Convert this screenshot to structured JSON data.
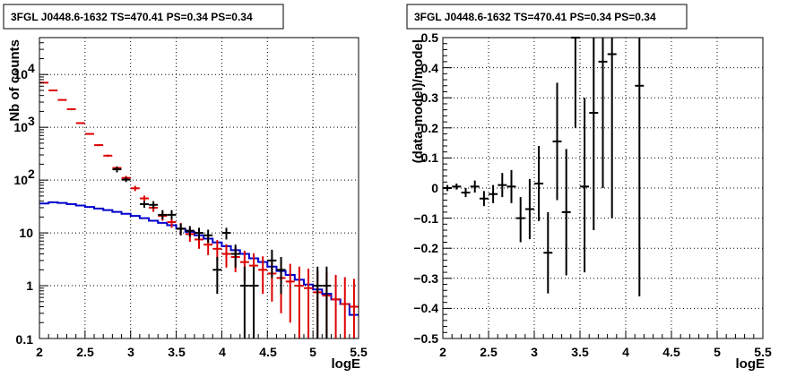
{
  "chart_data": [
    {
      "type": "scatter",
      "title": "3FGL J0448.6-1632 TS=470.41 PS=0.34 PS=0.34",
      "xlabel": "logE",
      "ylabel": "Nb of counts",
      "xlim": [
        2,
        5.5
      ],
      "ylim": [
        0.1,
        50000
      ],
      "log_y": true,
      "grid": true,
      "x_ticks": [
        "2",
        "2.5",
        "3",
        "3.5",
        "4",
        "4.5",
        "5",
        "5.5"
      ],
      "y_ticks": [
        "0.1",
        "1",
        "10",
        "10",
        "10",
        "10"
      ],
      "y_tick_exponents": [
        "",
        "",
        "",
        "2",
        "3",
        "4"
      ],
      "colors": {
        "data": "#000000",
        "model_points": "#dd0000",
        "model_line": "#0000cc"
      },
      "series": [
        {
          "kind": "data_errorbars",
          "points": [
            {
              "x": 2.85,
              "y": 160,
              "lo": 140,
              "hi": 180
            },
            {
              "x": 2.95,
              "y": 102,
              "lo": 92,
              "hi": 112
            },
            {
              "x": 3.15,
              "y": 35,
              "lo": 30,
              "hi": 40
            },
            {
              "x": 3.25,
              "y": 34,
              "lo": 29,
              "hi": 40
            },
            {
              "x": 3.35,
              "y": 22,
              "lo": 18,
              "hi": 27
            },
            {
              "x": 3.45,
              "y": 22,
              "lo": 18,
              "hi": 27
            },
            {
              "x": 3.55,
              "y": 12,
              "lo": 9,
              "hi": 15
            },
            {
              "x": 3.65,
              "y": 11,
              "lo": 8.5,
              "hi": 13.5
            },
            {
              "x": 3.75,
              "y": 10,
              "lo": 7.5,
              "hi": 12.5
            },
            {
              "x": 3.85,
              "y": 9,
              "lo": 6.5,
              "hi": 11.5
            },
            {
              "x": 3.95,
              "y": 2,
              "lo": 0.7,
              "hi": 3.5
            },
            {
              "x": 4.05,
              "y": 10,
              "lo": 7.5,
              "hi": 12.5
            },
            {
              "x": 4.15,
              "y": 4,
              "lo": 2.2,
              "hi": 6
            },
            {
              "x": 4.25,
              "y": 1,
              "lo": 0.1,
              "hi": 2.3
            },
            {
              "x": 4.35,
              "y": 1,
              "lo": 0.1,
              "hi": 2.3
            },
            {
              "x": 4.55,
              "y": 3,
              "lo": 1.4,
              "hi": 4.8
            },
            {
              "x": 4.65,
              "y": 2,
              "lo": 0.7,
              "hi": 3.5
            },
            {
              "x": 5.05,
              "y": 1,
              "lo": 0.1,
              "hi": 2.3
            },
            {
              "x": 5.15,
              "y": 1,
              "lo": 0.1,
              "hi": 2.3
            }
          ]
        },
        {
          "kind": "model_errorbars",
          "points": [
            {
              "x": 2.05,
              "y": 7000,
              "lo": 6850,
              "hi": 7150
            },
            {
              "x": 2.15,
              "y": 5000,
              "lo": 4900,
              "hi": 5100
            },
            {
              "x": 2.25,
              "y": 3300,
              "lo": 3220,
              "hi": 3380
            },
            {
              "x": 2.35,
              "y": 2200,
              "lo": 2140,
              "hi": 2260
            },
            {
              "x": 2.45,
              "y": 1200,
              "lo": 1160,
              "hi": 1240
            },
            {
              "x": 2.55,
              "y": 750,
              "lo": 720,
              "hi": 780
            },
            {
              "x": 2.65,
              "y": 460,
              "lo": 440,
              "hi": 480
            },
            {
              "x": 2.75,
              "y": 290,
              "lo": 275,
              "hi": 305
            },
            {
              "x": 2.85,
              "y": 170,
              "lo": 158,
              "hi": 182
            },
            {
              "x": 2.95,
              "y": 110,
              "lo": 100,
              "hi": 120
            },
            {
              "x": 3.05,
              "y": 70,
              "lo": 62,
              "hi": 78
            },
            {
              "x": 3.15,
              "y": 45,
              "lo": 39,
              "hi": 51
            },
            {
              "x": 3.25,
              "y": 30,
              "lo": 25,
              "hi": 35
            },
            {
              "x": 3.35,
              "y": 21,
              "lo": 17,
              "hi": 25
            },
            {
              "x": 3.45,
              "y": 16,
              "lo": 12.5,
              "hi": 20
            },
            {
              "x": 3.55,
              "y": 12,
              "lo": 9,
              "hi": 15.5
            },
            {
              "x": 3.65,
              "y": 9.5,
              "lo": 6.8,
              "hi": 12.5
            },
            {
              "x": 3.75,
              "y": 7.5,
              "lo": 5,
              "hi": 10.2
            },
            {
              "x": 3.85,
              "y": 6,
              "lo": 3.8,
              "hi": 8.5
            },
            {
              "x": 3.95,
              "y": 5,
              "lo": 3,
              "hi": 7.3
            },
            {
              "x": 4.05,
              "y": 4,
              "lo": 2.2,
              "hi": 6.1
            },
            {
              "x": 4.15,
              "y": 3.5,
              "lo": 1.8,
              "hi": 5.4
            },
            {
              "x": 4.25,
              "y": 2.8,
              "lo": 1.2,
              "hi": 4.6
            },
            {
              "x": 4.35,
              "y": 2.4,
              "lo": 0.9,
              "hi": 4.1
            },
            {
              "x": 4.45,
              "y": 2,
              "lo": 0.7,
              "hi": 3.6
            },
            {
              "x": 4.55,
              "y": 1.7,
              "lo": 0.5,
              "hi": 3.2
            },
            {
              "x": 4.65,
              "y": 1.4,
              "lo": 0.3,
              "hi": 2.8
            },
            {
              "x": 4.75,
              "y": 1.2,
              "lo": 0.2,
              "hi": 2.6
            },
            {
              "x": 4.85,
              "y": 1,
              "lo": 0.1,
              "hi": 2.3
            },
            {
              "x": 4.95,
              "y": 0.9,
              "lo": 0.1,
              "hi": 2.1
            },
            {
              "x": 5.05,
              "y": 0.75,
              "lo": 0.1,
              "hi": 1.9
            },
            {
              "x": 5.15,
              "y": 0.65,
              "lo": 0.1,
              "hi": 1.8
            },
            {
              "x": 5.25,
              "y": 0.55,
              "lo": 0.1,
              "hi": 1.6
            },
            {
              "x": 5.35,
              "y": 0.45,
              "lo": 0.1,
              "hi": 1.45
            },
            {
              "x": 5.45,
              "y": 0.4,
              "lo": 0.1,
              "hi": 1.35
            }
          ]
        },
        {
          "kind": "step_line",
          "edges": [
            2.0,
            2.1,
            2.2,
            2.3,
            2.4,
            2.5,
            2.6,
            2.7,
            2.8,
            2.9,
            3.0,
            3.1,
            3.2,
            3.3,
            3.4,
            3.5,
            3.6,
            3.7,
            3.8,
            3.9,
            4.0,
            4.1,
            4.2,
            4.3,
            4.4,
            4.5,
            4.6,
            4.7,
            4.8,
            4.9,
            5.0,
            5.1,
            5.2,
            5.3,
            5.4,
            5.5
          ],
          "values": [
            36,
            38,
            37,
            35,
            33,
            31,
            29,
            27,
            25,
            23,
            21,
            19,
            17,
            15.5,
            14,
            12,
            10.5,
            9,
            7.8,
            6.6,
            5.6,
            4.7,
            4,
            3.3,
            2.8,
            2.3,
            1.9,
            1.6,
            1.3,
            1.05,
            0.85,
            0.7,
            0.55,
            0.45,
            0.28
          ]
        }
      ]
    },
    {
      "type": "scatter",
      "title": "3FGL J0448.6-1632 TS=470.41 PS=0.34 PS=0.34",
      "xlabel": "logE",
      "ylabel": "(data-model)/model",
      "xlim": [
        2,
        5.5
      ],
      "ylim": [
        -0.5,
        0.5
      ],
      "grid": true,
      "x_ticks": [
        "2",
        "2.5",
        "3",
        "3.5",
        "4",
        "4.5",
        "5",
        "5.5"
      ],
      "y_ticks": [
        "−0.5",
        "−0.4",
        "−0.3",
        "−0.2",
        "−0.1",
        "0",
        "0.1",
        "0.2",
        "0.3",
        "0.4",
        "0.5"
      ],
      "colors": {
        "data": "#000000"
      },
      "series": [
        {
          "kind": "residuals",
          "points": [
            {
              "x": 2.05,
              "y": 0.0,
              "lo": -0.01,
              "hi": 0.01
            },
            {
              "x": 2.15,
              "y": 0.005,
              "lo": -0.005,
              "hi": 0.015
            },
            {
              "x": 2.25,
              "y": -0.015,
              "lo": -0.03,
              "hi": 0.0
            },
            {
              "x": 2.35,
              "y": 0.005,
              "lo": -0.015,
              "hi": 0.025
            },
            {
              "x": 2.45,
              "y": -0.035,
              "lo": -0.06,
              "hi": -0.01
            },
            {
              "x": 2.55,
              "y": -0.02,
              "lo": -0.05,
              "hi": 0.01
            },
            {
              "x": 2.65,
              "y": 0.01,
              "lo": -0.03,
              "hi": 0.05
            },
            {
              "x": 2.75,
              "y": 0.005,
              "lo": -0.05,
              "hi": 0.06
            },
            {
              "x": 2.85,
              "y": -0.1,
              "lo": -0.18,
              "hi": -0.03
            },
            {
              "x": 2.95,
              "y": -0.07,
              "lo": -0.17,
              "hi": 0.03
            },
            {
              "x": 3.05,
              "y": 0.015,
              "lo": -0.11,
              "hi": 0.14
            },
            {
              "x": 3.15,
              "y": -0.215,
              "lo": -0.35,
              "hi": -0.08
            },
            {
              "x": 3.25,
              "y": 0.155,
              "lo": -0.04,
              "hi": 0.35
            },
            {
              "x": 3.35,
              "y": -0.08,
              "lo": -0.29,
              "hi": 0.13
            },
            {
              "x": 3.45,
              "y": 0.5,
              "lo": 0.2,
              "hi": 0.5
            },
            {
              "x": 3.55,
              "y": 0.005,
              "lo": -0.28,
              "hi": 0.3
            },
            {
              "x": 3.65,
              "y": 0.25,
              "lo": -0.14,
              "hi": 0.5
            },
            {
              "x": 3.75,
              "y": 0.42,
              "lo": 0.0,
              "hi": 0.5
            },
            {
              "x": 3.85,
              "y": 0.445,
              "lo": -0.1,
              "hi": 0.5
            },
            {
              "x": 4.15,
              "y": 0.34,
              "lo": -0.36,
              "hi": 0.5
            }
          ]
        }
      ]
    }
  ]
}
